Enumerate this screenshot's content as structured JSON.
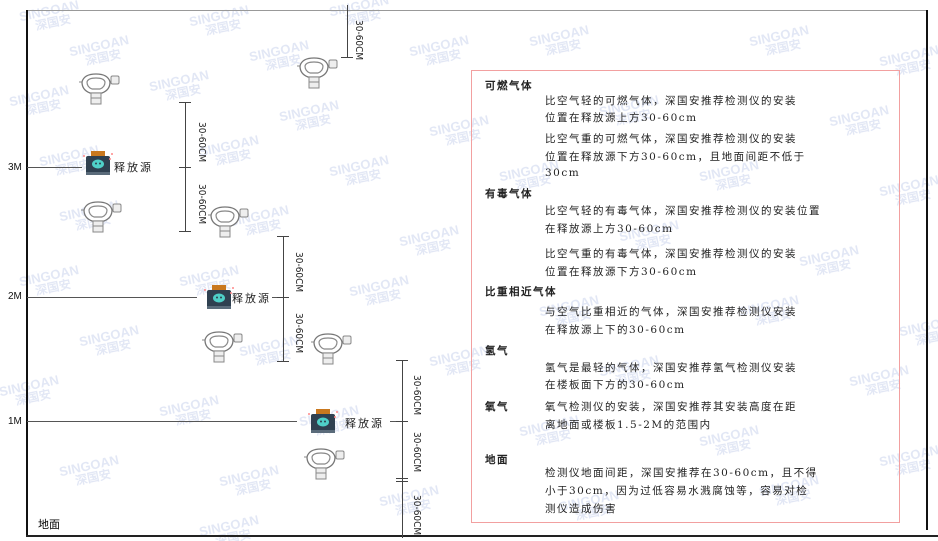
{
  "watermark": {
    "brand": "SINGOAN",
    "cn": "深国安"
  },
  "levels": [
    "3M",
    "2M",
    "1M"
  ],
  "floor_label": "地面",
  "source_label": "释放源",
  "dimension_label": "30-60CM",
  "colors": {
    "box_border": "#f2a0a0",
    "source_body": "#2f4050",
    "source_lid": "#c9781e",
    "source_face": "#4fd0c8"
  },
  "notes": [
    {
      "title": "可燃气体",
      "paras": [
        [
          "比空气轻的可燃气体，深国安推荐检测仪的安装",
          "位置在释放源上方30-60cm"
        ],
        [
          "比空气重的可燃气体，深国安推荐检测仪的安装",
          "位置在释放源下方30-60cm，且地面间距不低于",
          "30cm"
        ]
      ]
    },
    {
      "title": "有毒气体",
      "paras": [
        [
          "比空气轻的有毒气体，深国安推荐检测仪的安装位置",
          "在释放源上方30-60cm"
        ],
        [
          "比空气重的有毒气体，深国安推荐检测仪的安装",
          "位置在释放源下方30-60cm"
        ]
      ]
    },
    {
      "title": "比重相近气体",
      "paras": [
        [
          "与空气比重相近的气体，深国安推荐检测仪安装",
          "在释放源上下的30-60cm"
        ]
      ]
    },
    {
      "title": "氢气",
      "paras": [
        [
          "氢气是最轻的气体，深国安推荐氢气检测仪安装",
          "在楼板面下方的30-60cm"
        ]
      ]
    },
    {
      "title": "氧气",
      "paras": [
        [
          "氧气检测仪的安装，深国安推荐其安装高度在距",
          "离地面或楼板1.5-2M的范围内"
        ]
      ]
    },
    {
      "title": "地面",
      "paras": [
        [
          "检测仪地面间距，深国安推荐在30-60cm，且不得",
          "小于30cm，因为过低容易水溅腐蚀等，容易对检",
          "测仪造成伤害"
        ]
      ]
    }
  ]
}
